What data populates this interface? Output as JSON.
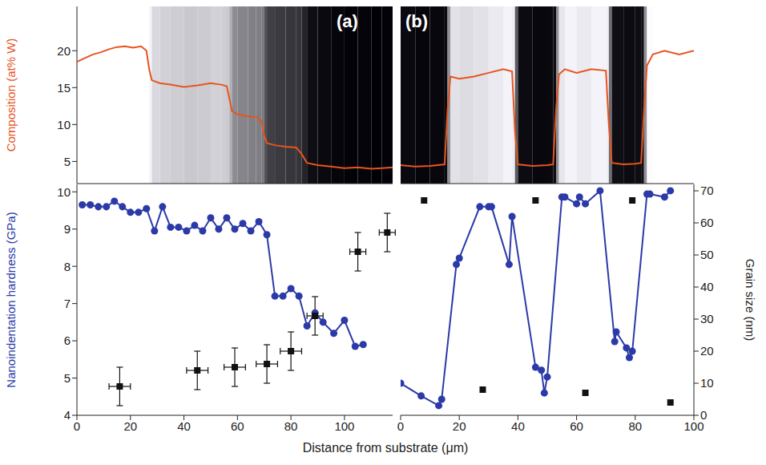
{
  "chart_data": [
    {
      "type": "line",
      "title": "(a)",
      "y_label": "Composition (at% W)",
      "xlim": [
        0,
        118
      ],
      "ylim": [
        2,
        26
      ],
      "yticks": [
        5,
        10,
        15,
        20
      ],
      "color": "#e8541e",
      "x": [
        0,
        3,
        6,
        9,
        12,
        15,
        18,
        21,
        24,
        26,
        27,
        28,
        31,
        35,
        40,
        45,
        50,
        54,
        56,
        57,
        58,
        60,
        64,
        67,
        69,
        70,
        71,
        74,
        78,
        82,
        84,
        86,
        90,
        95,
        100,
        105,
        110,
        114,
        118
      ],
      "values": [
        18.5,
        19.0,
        19.5,
        19.8,
        20.2,
        20.5,
        20.6,
        20.4,
        20.6,
        20.0,
        17.5,
        16.0,
        15.6,
        15.4,
        15.1,
        15.3,
        15.6,
        15.4,
        15.2,
        13.5,
        11.8,
        11.4,
        11.1,
        11.0,
        10.5,
        8.5,
        7.5,
        7.2,
        7.0,
        6.9,
        6.0,
        4.8,
        4.5,
        4.3,
        4.1,
        4.2,
        4.0,
        4.1,
        4.2
      ]
    },
    {
      "type": "line",
      "y_label": "Nanoindentation hardness (GPa)",
      "xlim": [
        0,
        118
      ],
      "xticks": [
        0,
        20,
        40,
        60,
        80,
        100
      ],
      "ylim": [
        4,
        10.2
      ],
      "yticks": [
        4,
        5,
        6,
        7,
        8,
        9,
        10
      ],
      "y2lim": [
        0,
        72
      ],
      "series": [
        {
          "type": "line",
          "color": "#2b3aa8",
          "marker": "circle",
          "x": [
            2,
            5,
            8,
            11,
            14,
            17,
            20,
            23,
            26,
            29,
            32,
            35,
            38,
            41,
            44,
            47,
            50,
            53,
            56,
            59,
            62,
            65,
            68,
            71,
            74,
            77,
            80,
            83,
            86,
            89,
            92,
            96,
            100,
            104,
            107
          ],
          "values": [
            9.65,
            9.65,
            9.6,
            9.6,
            9.75,
            9.6,
            9.45,
            9.45,
            9.55,
            8.95,
            9.6,
            9.05,
            9.05,
            8.95,
            9.1,
            8.95,
            9.3,
            9.0,
            9.3,
            9.0,
            9.15,
            8.95,
            9.2,
            8.85,
            7.2,
            7.2,
            7.4,
            7.2,
            6.4,
            6.75,
            6.5,
            6.2,
            6.55,
            5.85,
            5.9
          ]
        },
        {
          "type": "scatter",
          "axis": "y2",
          "color": "#111111",
          "marker": "square",
          "x": [
            16,
            45,
            59,
            71,
            80,
            89,
            105,
            116
          ],
          "values": [
            9,
            14,
            15,
            16,
            20,
            31,
            51,
            57
          ],
          "x_err": [
            4,
            4,
            4,
            4,
            4,
            3,
            3,
            3
          ],
          "y_err": [
            6,
            6,
            6,
            6,
            6,
            6,
            6,
            6
          ]
        }
      ]
    },
    {
      "type": "line",
      "title": "(b)",
      "xlim": [
        0,
        100
      ],
      "ylim": [
        2,
        26
      ],
      "color": "#e8541e",
      "x": [
        0,
        5,
        10,
        15,
        16,
        17,
        20,
        25,
        30,
        35,
        38,
        39,
        40,
        45,
        50,
        52,
        53,
        54,
        56,
        60,
        65,
        70,
        71,
        72,
        76,
        80,
        82,
        83,
        84,
        86,
        90,
        95,
        100
      ],
      "values": [
        4.5,
        4.3,
        4.4,
        4.6,
        12,
        16.5,
        16.2,
        16.5,
        17,
        17.5,
        17.2,
        9,
        4.6,
        4.4,
        4.5,
        4.6,
        12,
        16.8,
        17.5,
        17.0,
        17.5,
        17.3,
        10,
        4.8,
        4.6,
        4.7,
        4.8,
        12,
        18.0,
        19.5,
        20.0,
        19.5,
        20.0
      ]
    },
    {
      "type": "line",
      "x_label": "Distance from substrate (μm)",
      "y2_label": "Grain size (nm)",
      "xlim": [
        0,
        100
      ],
      "xticks": [
        0,
        20,
        40,
        60,
        80,
        100
      ],
      "ylim": [
        4,
        10.2
      ],
      "y2lim": [
        0,
        72
      ],
      "y2ticks": [
        0,
        10,
        20,
        30,
        40,
        50,
        60,
        70
      ],
      "series": [
        {
          "type": "line",
          "color": "#2b3aa8",
          "marker": "circle",
          "x": [
            0,
            7,
            13,
            14,
            19,
            20,
            27,
            30,
            31,
            37,
            38,
            46,
            48,
            49,
            50,
            55,
            56,
            60,
            61,
            63,
            68,
            73,
            73.5,
            77,
            78,
            79,
            84,
            85,
            90,
            92
          ],
          "values": [
            4.86,
            4.52,
            4.26,
            4.43,
            8.05,
            8.22,
            9.6,
            9.6,
            9.6,
            8.05,
            9.34,
            5.29,
            5.21,
            4.6,
            5.03,
            9.86,
            9.86,
            9.68,
            9.86,
            9.68,
            10.03,
            5.98,
            6.24,
            5.81,
            5.55,
            5.72,
            9.94,
            9.94,
            9.86,
            10.03
          ]
        },
        {
          "type": "scatter",
          "axis": "y2",
          "color": "#111111",
          "marker": "square",
          "x": [
            8,
            28,
            46,
            63,
            79,
            92
          ],
          "values": [
            67,
            8,
            67,
            7,
            67,
            4
          ]
        }
      ]
    }
  ]
}
